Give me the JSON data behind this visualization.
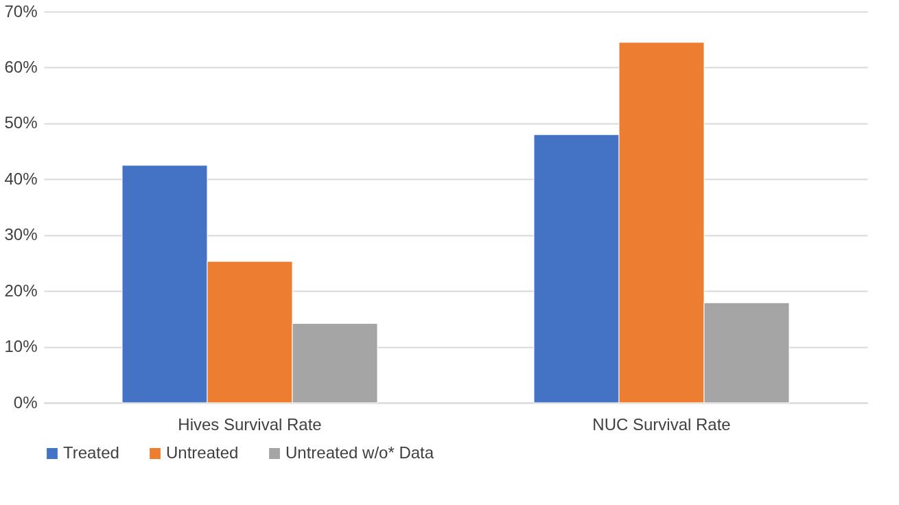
{
  "chart_data": {
    "type": "bar",
    "categories": [
      "Hives Survival Rate",
      "NUC Survival Rate"
    ],
    "series": [
      {
        "name": "Treated",
        "color": "#4472c4",
        "values": [
          42.5,
          48
        ]
      },
      {
        "name": "Untreated",
        "color": "#ed7d31",
        "values": [
          25.3,
          64.5
        ]
      },
      {
        "name": "Untreated w/o* Data",
        "color": "#a5a5a5",
        "values": [
          14.2,
          17.9
        ]
      }
    ],
    "ylim": [
      0,
      70
    ],
    "yticks": [
      {
        "value": 0,
        "label": "0%"
      },
      {
        "value": 10,
        "label": "10%"
      },
      {
        "value": 20,
        "label": "20%"
      },
      {
        "value": 30,
        "label": "30%"
      },
      {
        "value": 40,
        "label": "40%"
      },
      {
        "value": 50,
        "label": "50%"
      },
      {
        "value": 60,
        "label": "60%"
      },
      {
        "value": 70,
        "label": "70%"
      }
    ],
    "grid": "y",
    "legend": "bottom"
  }
}
